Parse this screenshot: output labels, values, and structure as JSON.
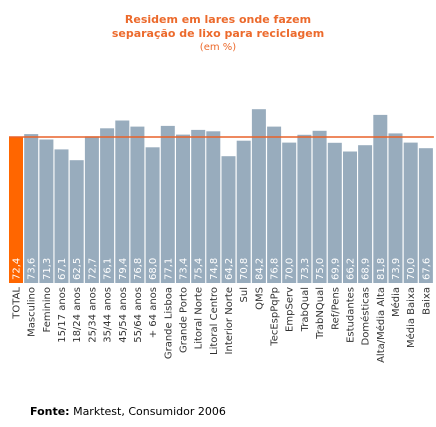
{
  "chart_data": {
    "type": "bar",
    "title_lines": [
      "Residem em lares onde fazem",
      "separação de lixo para reciclagem"
    ],
    "subtitle": "(em %)",
    "categories": [
      "TOTAL",
      "Masculino",
      "Feminino",
      "15/17 anos",
      "18/24 anos",
      "25/34 anos",
      "35/44 anos",
      "45/54 anos",
      "55/64 anos",
      "+ 64 anos",
      "Grande Lisboa",
      "Grande Porto",
      "Litoral Norte",
      "Litoral Centro",
      "Interior Norte",
      "Sul",
      "QMS",
      "TecEspPqPp",
      "EmpServ",
      "TrabQual",
      "TrabNQual",
      "Ref/Pens",
      "Estudantes",
      "Domésticas",
      "Alta/Média Alta",
      "Média",
      "Média Baixa",
      "Baixa"
    ],
    "value_labels": [
      "72,4",
      "73,6",
      "71,3",
      "67,1",
      "62,5",
      "72,7",
      "76,1",
      "79,4",
      "76,8",
      "68,0",
      "77,1",
      "73,4",
      "75,4",
      "74,8",
      "64,2",
      "70,8",
      "84,2",
      "76,8",
      "70,0",
      "73,3",
      "75,0",
      "69,9",
      "66,2",
      "68,9",
      "81,8",
      "73,9",
      "70,0",
      "67,6"
    ],
    "values": [
      72.4,
      73.6,
      71.3,
      67.1,
      62.5,
      72.7,
      76.1,
      79.4,
      76.8,
      68.0,
      77.1,
      73.4,
      75.4,
      74.8,
      64.2,
      70.8,
      84.2,
      76.8,
      70.0,
      73.3,
      75.0,
      69.9,
      66.2,
      68.9,
      81.8,
      73.9,
      70.0,
      67.6
    ],
    "reference_line": 72.4,
    "highlight_index": 0,
    "colors": {
      "highlight": "#ff6600",
      "bar": "#98acbd",
      "reference": "#e8622a",
      "title": "#ec6a2c"
    }
  },
  "source": {
    "label": "Fonte:",
    "text": "Marktest, Consumidor 2006"
  }
}
